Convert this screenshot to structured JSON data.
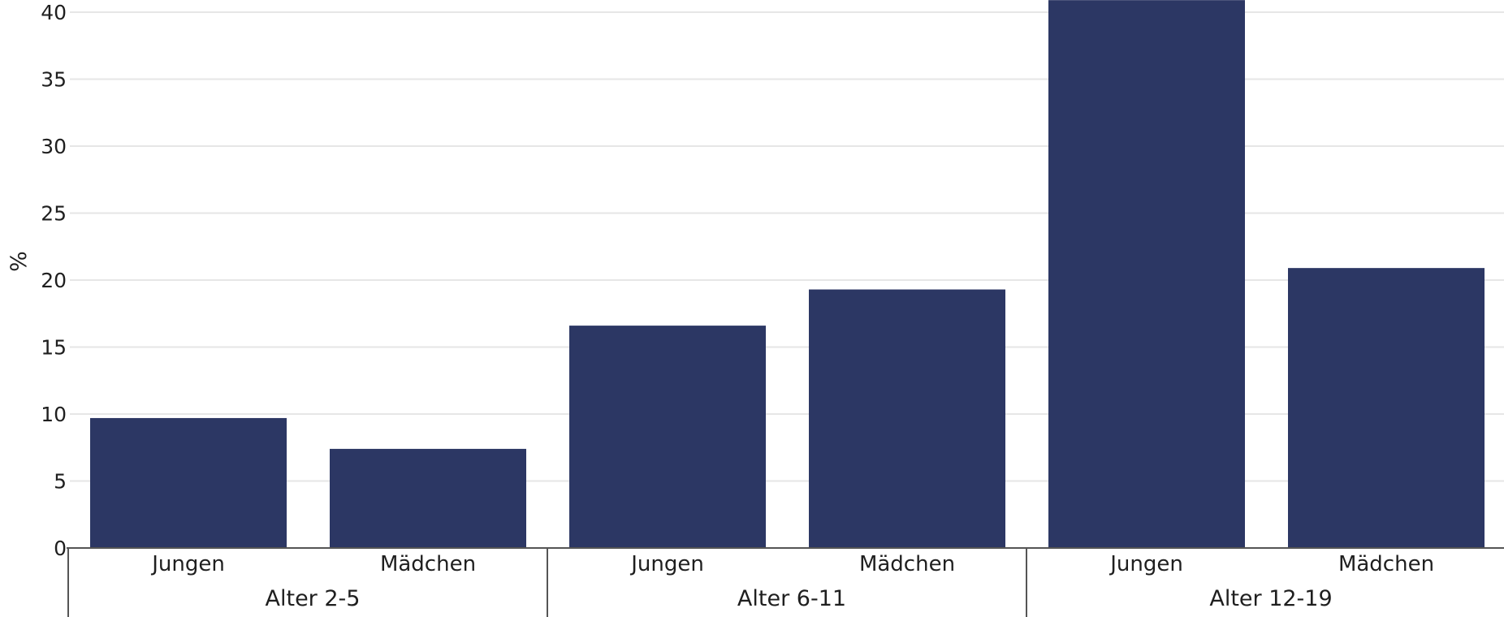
{
  "chart_data": {
    "type": "bar",
    "title": "",
    "xlabel": "",
    "ylabel": "%",
    "ylim": [
      0,
      40
    ],
    "yticks": [
      0,
      5,
      10,
      15,
      20,
      25,
      30,
      35,
      40
    ],
    "grid": true,
    "legend": "none",
    "bar_color": "#2c3764",
    "grid_color": "#e6e6e6",
    "axis_color": "#555555",
    "groups": [
      {
        "label": "Alter 2-5",
        "categories": [
          "Jungen",
          "Mädchen"
        ],
        "values": [
          9.7,
          7.4
        ]
      },
      {
        "label": "Alter 6-11",
        "categories": [
          "Jungen",
          "Mädchen"
        ],
        "values": [
          16.6,
          19.3
        ]
      },
      {
        "label": "Alter 12-19",
        "categories": [
          "Jungen",
          "Mädchen"
        ],
        "values": [
          40.9,
          20.9
        ]
      }
    ]
  }
}
